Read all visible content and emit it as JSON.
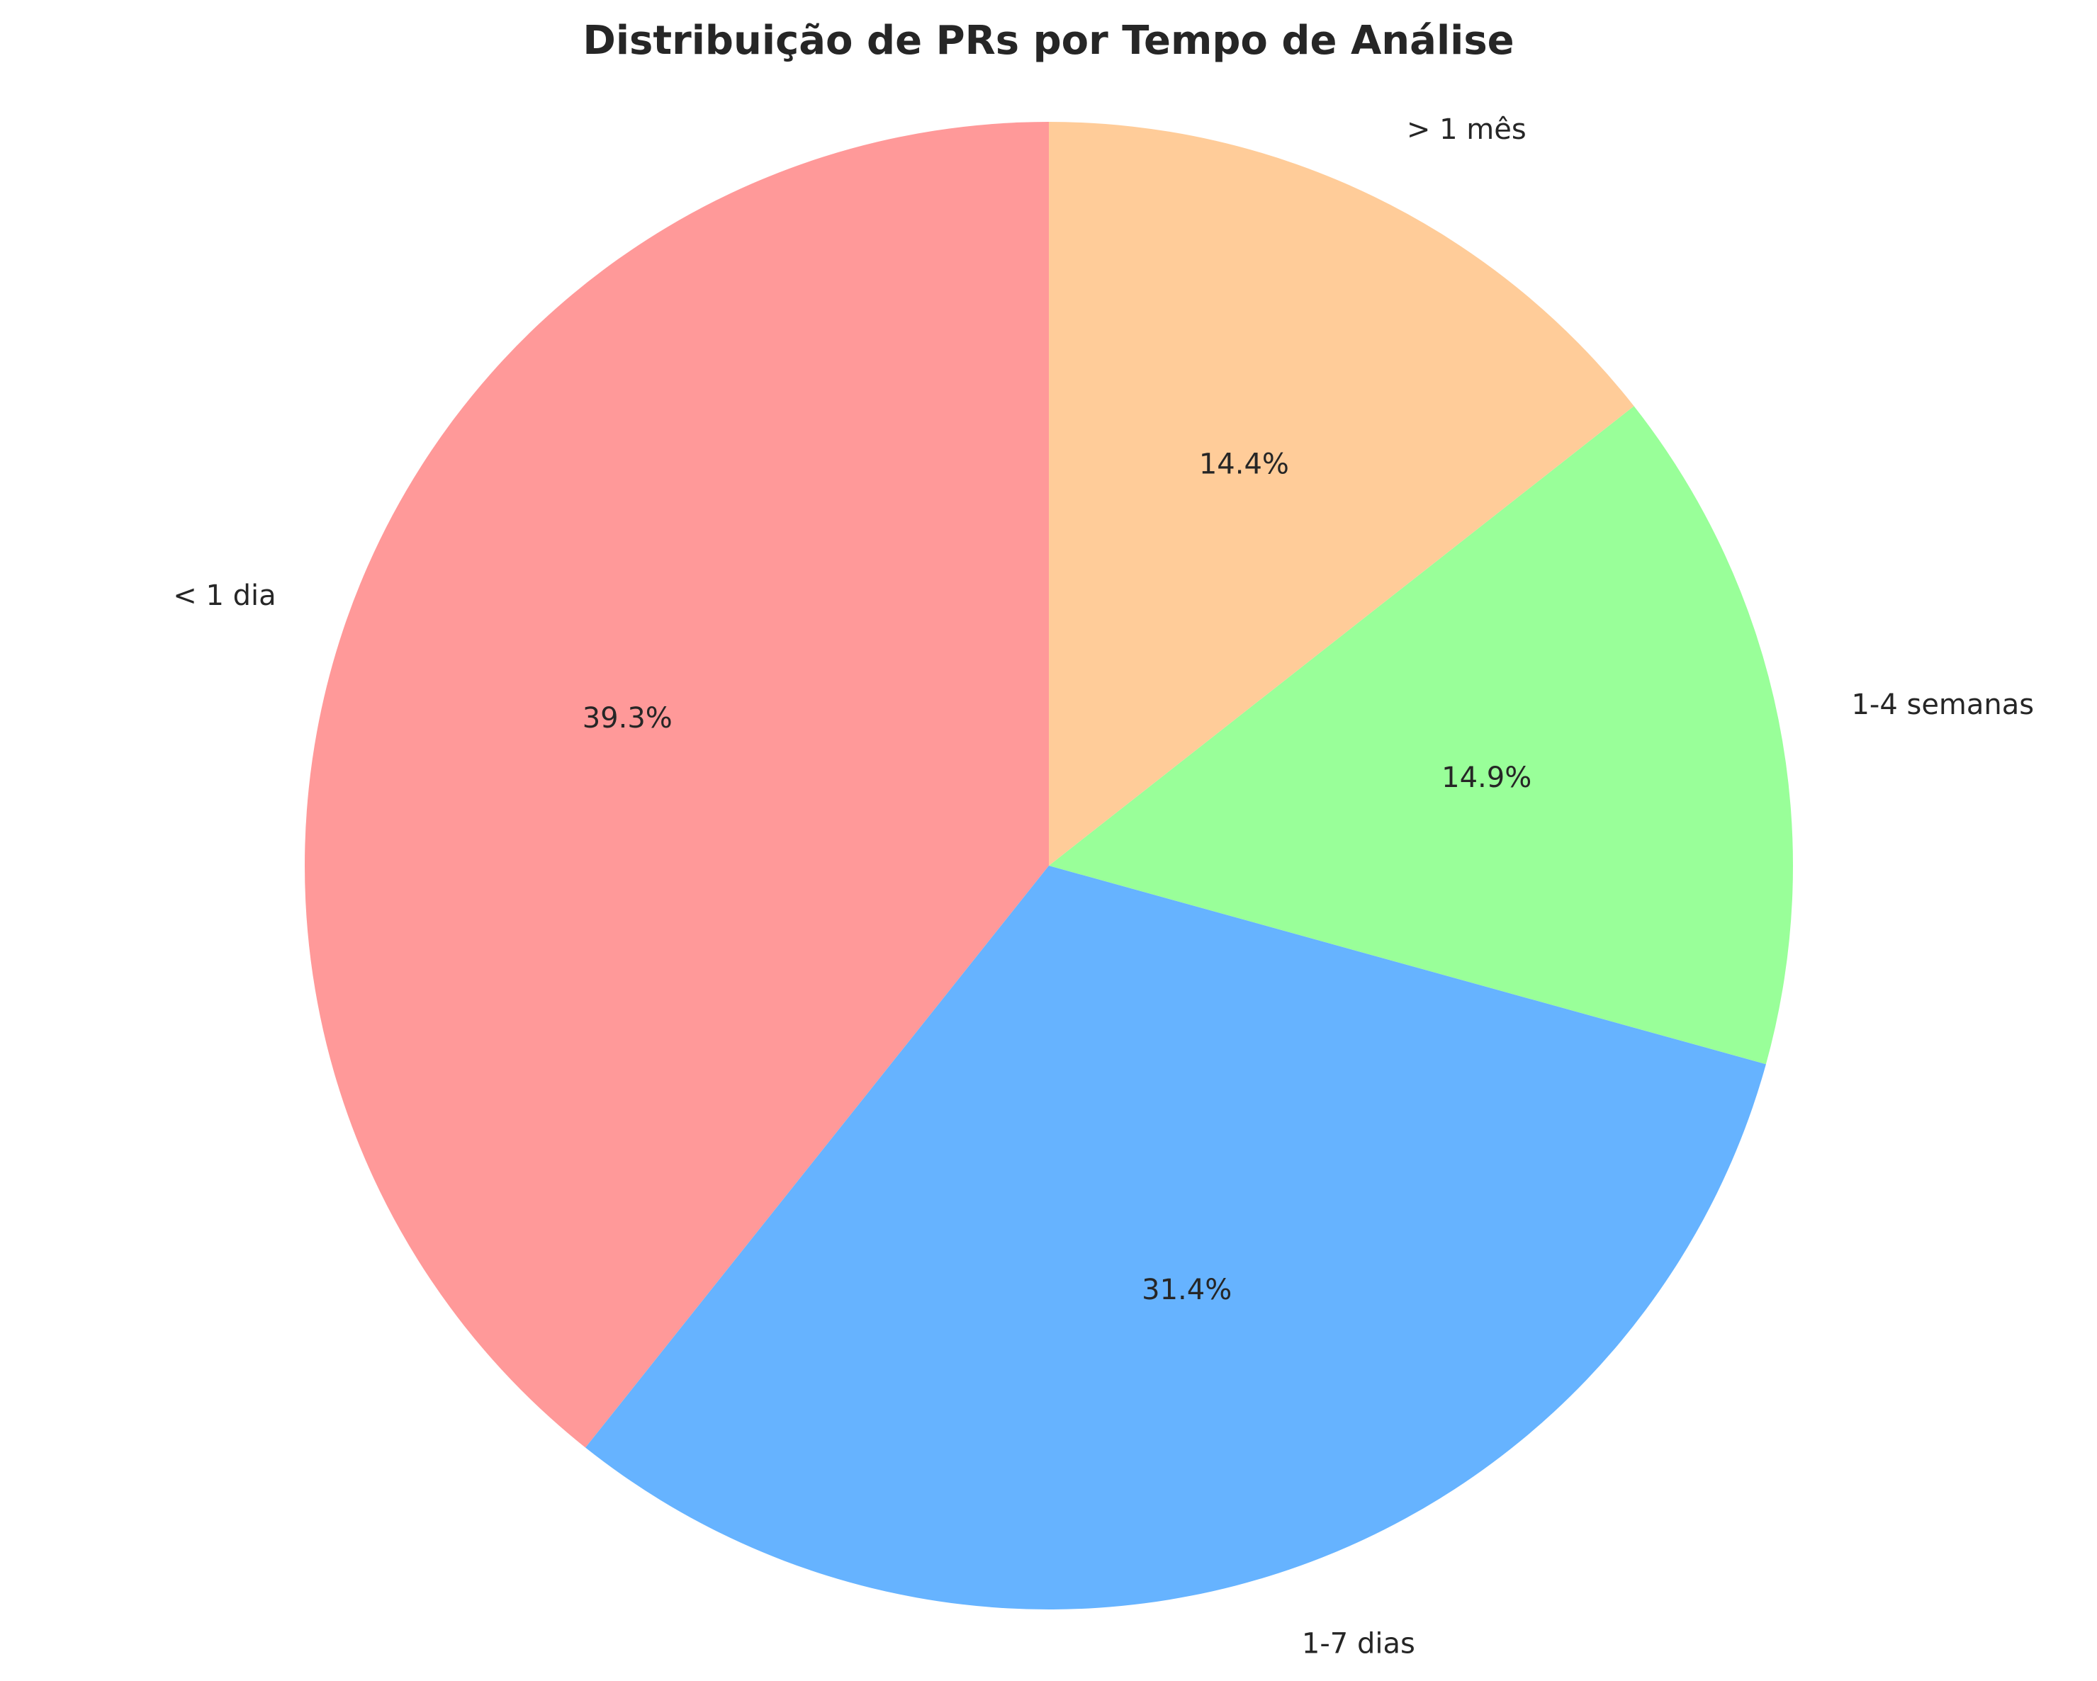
{
  "chart_data": {
    "type": "pie",
    "title": "Distribuição de PRs por Tempo de Análise",
    "categories": [
      "< 1 dia",
      "1-7 dias",
      "1-4 semanas",
      "> 1 mês"
    ],
    "values": [
      39.3,
      31.4,
      14.9,
      14.4
    ],
    "value_labels": [
      "39.3%",
      "31.4%",
      "14.9%",
      "14.4%"
    ],
    "colors": [
      "#ff9999",
      "#66b3ff",
      "#99ff99",
      "#ffcc99"
    ],
    "start_angle_degrees": 90,
    "direction": "counterclockwise",
    "legend": "none"
  }
}
